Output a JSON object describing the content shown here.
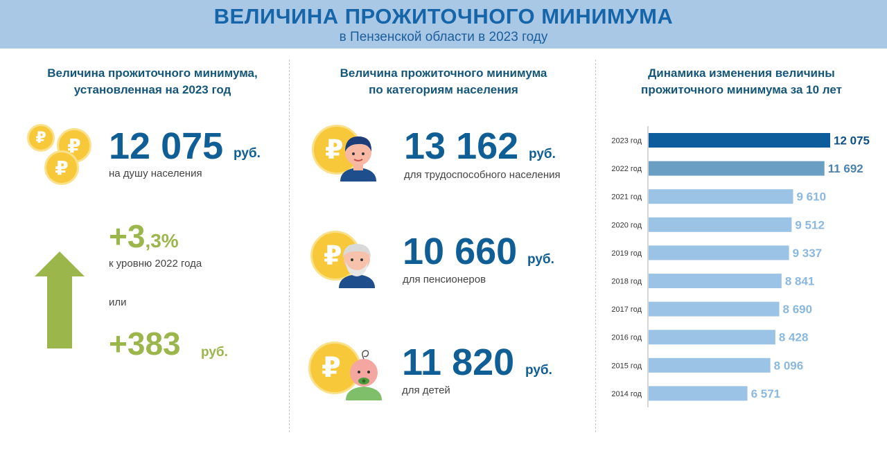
{
  "header": {
    "title": "ВЕЛИЧИНА ПРОЖИТОЧНОГО МИНИМУМА",
    "subtitle": "в Пензенской области в 2023 году"
  },
  "left": {
    "heading_line1": "Величина прожиточного минимума,",
    "heading_line2": "установленная на 2023 год",
    "main_value": "12 075",
    "main_unit": "руб.",
    "main_caption": "на душу населения",
    "growth_big": "+3",
    "growth_small": ",3%",
    "growth_caption": "к уровню 2022 года",
    "or_text": "или",
    "abs_value": "+383",
    "abs_unit": "руб."
  },
  "middle": {
    "heading_line1": "Величина прожиточного минимума",
    "heading_line2": "по категориям населения",
    "categories": [
      {
        "value": "13 162",
        "unit": "руб.",
        "caption": "для трудоспособного населения"
      },
      {
        "value": "10 660",
        "unit": "руб.",
        "caption": "для пенсионеров"
      },
      {
        "value": "11 820",
        "unit": "руб.",
        "caption": "для детей"
      }
    ]
  },
  "right": {
    "heading_line1": "Динамика изменения величины",
    "heading_line2": "прожиточного минимума за 10 лет"
  },
  "icons": {
    "coin": "ruble-coin-icon",
    "arrow": "arrow-up-icon",
    "worker": "worker-avatar-icon",
    "pensioner": "pensioner-avatar-icon",
    "child": "baby-avatar-icon"
  },
  "colors": {
    "accent_blue": "#0f5e96",
    "green": "#9bb64a",
    "bar_current": "#0d5c9c",
    "bar_previous": "#6a9ec3",
    "bar_other": "#9bc3e6",
    "coin": "#f7c93a"
  },
  "chart_data": {
    "type": "bar",
    "orientation": "horizontal",
    "title": "Динамика изменения величины прожиточного минимума за 10 лет",
    "categories": [
      "2023 год",
      "2022 год",
      "2021 год",
      "2020 год",
      "2019 год",
      "2018 год",
      "2017 год",
      "2016 год",
      "2015 год",
      "2014 год"
    ],
    "values": [
      12075,
      11692,
      9610,
      9512,
      9337,
      8841,
      8690,
      8428,
      8096,
      6571
    ],
    "labels": [
      "12 075",
      "11 692",
      "9 610",
      "9 512",
      "9 337",
      "8 841",
      "8 690",
      "8 428",
      "8 096",
      "6 571"
    ],
    "xlim": [
      0,
      12075
    ],
    "grid": false,
    "legend": "none"
  }
}
